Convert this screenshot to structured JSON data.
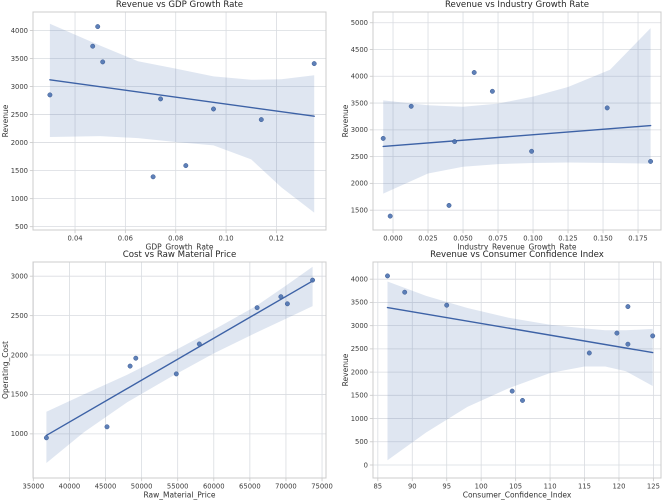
{
  "figure": {
    "background": "#ffffff",
    "rows": 2,
    "cols": 2
  },
  "style": {
    "point_color": "#4c72b0",
    "point_edge_color": "#3b5a92",
    "line_color": "#3d62a6",
    "band_fill": "rgba(76,114,176,0.18)",
    "grid_color": "#d9dce1",
    "spine_color": "#cccccc",
    "tick_color": "#cccccc"
  },
  "chart_data": [
    {
      "id": "revenue-vs-gdp-growth-rate",
      "type": "scatter",
      "title": "Revenue vs GDP Growth Rate",
      "xlabel": "GDP_Growth_Rate",
      "ylabel": "Revenue",
      "xlim": [
        0.0233,
        0.1397
      ],
      "ylim": [
        440,
        4330
      ],
      "grid": true,
      "legend": "none",
      "margin": {
        "l": 33,
        "r": 8,
        "t": 12,
        "b": 20
      },
      "xticks": {
        "values": [
          0.04,
          0.06,
          0.08,
          0.1,
          0.12
        ],
        "labels": [
          "0.04",
          "0.06",
          "0.08",
          "0.10",
          "0.12"
        ]
      },
      "yticks": {
        "values": [
          500,
          1000,
          1500,
          2000,
          2500,
          3000,
          3500,
          4000
        ],
        "labels": [
          "500",
          "1000",
          "1500",
          "2000",
          "2500",
          "3000",
          "3500",
          "4000"
        ]
      },
      "points": [
        [
          0.03,
          2850
        ],
        [
          0.047,
          3720
        ],
        [
          0.049,
          4070
        ],
        [
          0.051,
          3440
        ],
        [
          0.071,
          1390
        ],
        [
          0.074,
          2780
        ],
        [
          0.084,
          1590
        ],
        [
          0.095,
          2600
        ],
        [
          0.114,
          2410
        ],
        [
          0.135,
          3410
        ]
      ],
      "regression_line": {
        "x1": 0.03,
        "y1": 3120,
        "x2": 0.135,
        "y2": 2470
      },
      "confidence_band": [
        [
          0.03,
          2100,
          4120
        ],
        [
          0.05,
          2115,
          3730
        ],
        [
          0.065,
          2080,
          3450
        ],
        [
          0.08,
          2010,
          3320
        ],
        [
          0.095,
          1950,
          3180
        ],
        [
          0.11,
          1700,
          3120
        ],
        [
          0.122,
          1200,
          3130
        ],
        [
          0.135,
          750,
          3200
        ]
      ]
    },
    {
      "id": "revenue-vs-industry-growth-rate",
      "type": "scatter",
      "title": "Revenue vs Industry Growth Rate",
      "xlabel": "Industry_Revenue_Growth_Rate",
      "ylabel": "Revenue",
      "xlim": [
        -0.0143,
        0.1914
      ],
      "ylim": [
        1130,
        5200
      ],
      "grid": true,
      "legend": "none",
      "margin": {
        "l": 38,
        "r": 8,
        "t": 12,
        "b": 20
      },
      "xticks": {
        "values": [
          0.0,
          0.025,
          0.05,
          0.075,
          0.1,
          0.125,
          0.15,
          0.175
        ],
        "labels": [
          "0.000",
          "0.025",
          "0.050",
          "0.075",
          "0.100",
          "0.125",
          "0.150",
          "0.175"
        ]
      },
      "yticks": {
        "values": [
          1500,
          2000,
          2500,
          3000,
          3500,
          4000,
          4500,
          5000
        ],
        "labels": [
          "1500",
          "2000",
          "2500",
          "3000",
          "3500",
          "4000",
          "4500",
          "5000"
        ]
      },
      "points": [
        [
          -0.007,
          2840
        ],
        [
          -0.002,
          1390
        ],
        [
          0.013,
          3440
        ],
        [
          0.04,
          1590
        ],
        [
          0.044,
          2780
        ],
        [
          0.058,
          4070
        ],
        [
          0.071,
          3720
        ],
        [
          0.099,
          2600
        ],
        [
          0.153,
          3410
        ],
        [
          0.184,
          2410
        ]
      ],
      "regression_line": {
        "x1": -0.007,
        "y1": 2690,
        "x2": 0.184,
        "y2": 3080
      },
      "confidence_band": [
        [
          -0.007,
          1810,
          3550
        ],
        [
          0.025,
          2185,
          3460
        ],
        [
          0.05,
          2310,
          3430
        ],
        [
          0.075,
          2360,
          3490
        ],
        [
          0.1,
          2380,
          3620
        ],
        [
          0.125,
          2390,
          3800
        ],
        [
          0.155,
          2380,
          4120
        ],
        [
          0.184,
          2370,
          4900
        ]
      ]
    },
    {
      "id": "cost-vs-raw-material-price",
      "type": "scatter",
      "title": "Cost vs Raw Material Price",
      "xlabel": "Raw_Material_Price",
      "ylabel": "Operating_Cost",
      "xlim": [
        34950,
        75550
      ],
      "ylim": [
        440,
        3180
      ],
      "grid": true,
      "legend": "none",
      "margin": {
        "l": 33,
        "r": 8,
        "t": 12,
        "b": 22
      },
      "xticks": {
        "values": [
          35000,
          40000,
          45000,
          50000,
          55000,
          60000,
          65000,
          70000,
          75000
        ],
        "labels": [
          "35000",
          "40000",
          "45000",
          "50000",
          "55000",
          "60000",
          "65000",
          "70000",
          "75000"
        ]
      },
      "yticks": {
        "values": [
          1000,
          1500,
          2000,
          2500,
          3000
        ],
        "labels": [
          "1000",
          "1500",
          "2000",
          "2500",
          "3000"
        ]
      },
      "points": [
        [
          36800,
          950
        ],
        [
          45200,
          1090
        ],
        [
          48400,
          1860
        ],
        [
          49200,
          1960
        ],
        [
          54800,
          1760
        ],
        [
          58000,
          2140
        ],
        [
          66000,
          2600
        ],
        [
          69300,
          2740
        ],
        [
          70200,
          2650
        ],
        [
          73700,
          2950
        ]
      ],
      "regression_line": {
        "x1": 36800,
        "y1": 980,
        "x2": 73700,
        "y2": 2940
      },
      "confidence_band": [
        [
          36800,
          630,
          1280
        ],
        [
          42000,
          1020,
          1500
        ],
        [
          48000,
          1400,
          1750
        ],
        [
          54000,
          1720,
          2030
        ],
        [
          60000,
          2020,
          2320
        ],
        [
          66000,
          2290,
          2630
        ],
        [
          70000,
          2460,
          2880
        ],
        [
          73700,
          2620,
          3120
        ]
      ]
    },
    {
      "id": "revenue-vs-consumer-confidence-index",
      "type": "scatter",
      "title": "Revenue vs Consumer Confidence Index",
      "xlabel": "Consumer_Confidence_Index",
      "ylabel": "Revenue",
      "xlim": [
        84.3,
        126.1
      ],
      "ylim": [
        -280,
        4370
      ],
      "grid": true,
      "legend": "none",
      "margin": {
        "l": 38,
        "r": 8,
        "t": 12,
        "b": 22
      },
      "xticks": {
        "values": [
          85,
          90,
          95,
          100,
          105,
          110,
          115,
          120,
          125
        ],
        "labels": [
          "85",
          "90",
          "95",
          "100",
          "105",
          "110",
          "115",
          "120",
          "125"
        ]
      },
      "yticks": {
        "values": [
          0,
          500,
          1000,
          1500,
          2000,
          2500,
          3000,
          3500,
          4000
        ],
        "labels": [
          "0",
          "500",
          "1000",
          "1500",
          "2000",
          "2500",
          "3000",
          "3500",
          "4000"
        ]
      },
      "points": [
        [
          86.4,
          4070
        ],
        [
          88.9,
          3720
        ],
        [
          95.0,
          3440
        ],
        [
          104.5,
          1590
        ],
        [
          106.0,
          1390
        ],
        [
          115.7,
          2410
        ],
        [
          119.7,
          2840
        ],
        [
          121.3,
          3410
        ],
        [
          121.3,
          2600
        ],
        [
          124.9,
          2780
        ]
      ],
      "regression_line": {
        "x1": 86.4,
        "y1": 3390,
        "x2": 124.9,
        "y2": 2420
      },
      "confidence_band": [
        [
          86.4,
          100,
          3950
        ],
        [
          92,
          700,
          3640
        ],
        [
          98,
          1250,
          3380
        ],
        [
          104,
          1650,
          3170
        ],
        [
          110,
          1980,
          3020
        ],
        [
          115,
          2120,
          2940
        ],
        [
          118,
          2120,
          2900
        ],
        [
          121,
          2020,
          2900
        ],
        [
          124.9,
          1700,
          2930
        ]
      ]
    }
  ]
}
